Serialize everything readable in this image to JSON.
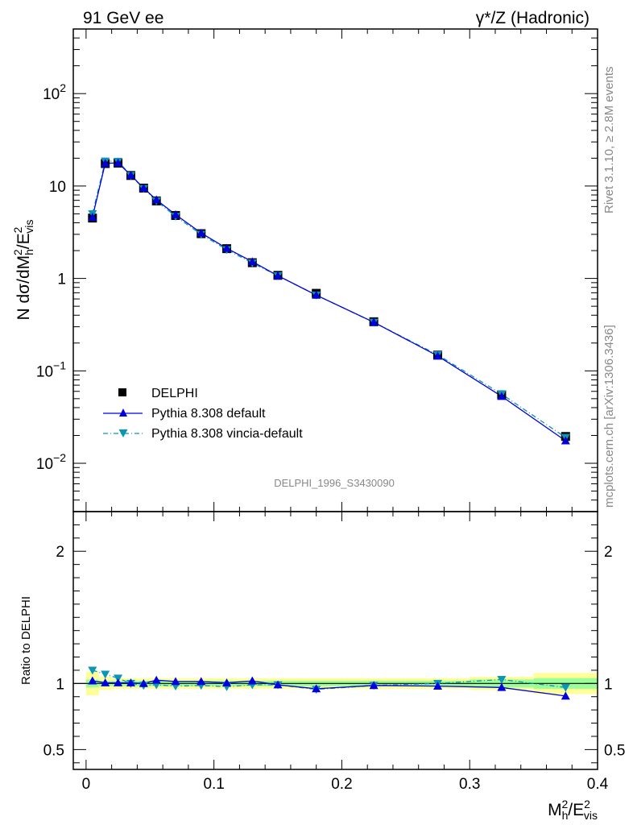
{
  "header": {
    "left_label": "91 GeV ee",
    "right_label": "γ*/Z (Hadronic)"
  },
  "side_labels": {
    "rivet": "Rivet 3.1.10, ≥ 2.8M events",
    "mcplots": "mcplots.cern.ch [arXiv:1306.3436]"
  },
  "watermark": "DELPHI_1996_S3430090",
  "axes": {
    "ylabel_main": "N dσ/dM_h^2/E_vis^2",
    "ylabel_ratio": "Ratio to DELPHI",
    "xlabel": "M_h^2/E_vis^2",
    "xlim": [
      -0.01,
      0.4
    ],
    "ylim_main": [
      0.003,
      500
    ],
    "ylim_ratio": [
      0.35,
      2.3
    ],
    "yscale_main": "log",
    "x_ticks": [
      "0",
      "0.1",
      "0.2",
      "0.3",
      "0.4"
    ],
    "y_ticks_main": [
      "10^-2",
      "10^-1",
      "1",
      "10",
      "10^2"
    ],
    "y_ticks_ratio": [
      "0.5",
      "1",
      "2"
    ]
  },
  "legend": {
    "placement": "lower-left",
    "entries": [
      "DELPHI",
      "Pythia 8.308 default",
      "Pythia 8.308 vincia-default"
    ]
  },
  "colors": {
    "data": "#000000",
    "default": "#0000dd",
    "vincia": "#0b96b4",
    "band_outer": "#ffff99",
    "band_inner": "#99ff99"
  },
  "chart_data": {
    "type": "line",
    "x": [
      0.005,
      0.015,
      0.025,
      0.035,
      0.045,
      0.055,
      0.07,
      0.09,
      0.11,
      0.13,
      0.15,
      0.18,
      0.225,
      0.275,
      0.325,
      0.375
    ],
    "series": [
      {
        "name": "DELPHI",
        "kind": "data",
        "values": [
          4.5,
          17.5,
          17.7,
          13.0,
          9.5,
          6.9,
          4.8,
          3.05,
          2.1,
          1.48,
          1.08,
          0.69,
          0.34,
          0.148,
          0.055,
          0.0195
        ]
      },
      {
        "name": "Pythia 8.308 default",
        "kind": "mc",
        "values": [
          4.6,
          17.6,
          17.8,
          13.1,
          9.5,
          7.1,
          4.9,
          3.1,
          2.12,
          1.52,
          1.07,
          0.66,
          0.336,
          0.145,
          0.053,
          0.0175
        ]
      },
      {
        "name": "Pythia 8.308 vincia-default",
        "kind": "mc",
        "values": [
          5.0,
          18.6,
          18.5,
          13.0,
          9.4,
          6.9,
          4.7,
          3.0,
          2.05,
          1.47,
          1.07,
          0.66,
          0.335,
          0.149,
          0.056,
          0.019
        ]
      }
    ],
    "ratio": {
      "default": [
        1.02,
        1.005,
        1.005,
        1.005,
        1.0,
        1.025,
        1.015,
        1.015,
        1.005,
        1.02,
        0.99,
        0.96,
        0.985,
        0.98,
        0.97,
        0.905
      ],
      "vincia": [
        1.1,
        1.07,
        1.04,
        1.0,
        0.985,
        0.99,
        0.98,
        0.985,
        0.975,
        0.99,
        0.99,
        0.955,
        0.985,
        1.0,
        1.03,
        0.97
      ],
      "band_outer": [
        0.09,
        0.05,
        0.04,
        0.04,
        0.04,
        0.04,
        0.04,
        0.04,
        0.04,
        0.04,
        0.04,
        0.04,
        0.04,
        0.04,
        0.05,
        0.08
      ],
      "band_inner": [
        0.03,
        0.02,
        0.02,
        0.02,
        0.02,
        0.02,
        0.02,
        0.02,
        0.02,
        0.02,
        0.02,
        0.02,
        0.02,
        0.02,
        0.03,
        0.04
      ]
    }
  }
}
